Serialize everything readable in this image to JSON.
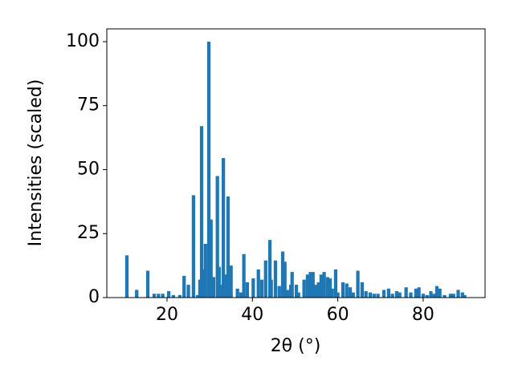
{
  "chart_data": {
    "type": "bar",
    "xlabel": "2θ (°)",
    "ylabel": "Intensities (scaled)",
    "color": "#1f77b4",
    "bar_width": 0.8,
    "x": [
      10.6,
      12.9,
      15.5,
      17,
      18,
      19,
      20.4,
      21.5,
      23,
      24,
      25,
      26.2,
      27.2,
      27.7,
      28.1,
      28.6,
      29,
      29.8,
      30.3,
      30.9,
      31.8,
      32.2,
      32.8,
      33.2,
      33.7,
      34.3,
      35,
      36.5,
      37.3,
      38,
      38.8,
      40.2,
      41.4,
      42.2,
      43.1,
      44.1,
      44.4,
      45.4,
      46.3,
      47.1,
      47.6,
      48.2,
      49,
      49.3,
      50.3,
      50.8,
      52.1,
      52.9,
      53.6,
      54.2,
      54.8,
      55.5,
      56.1,
      56.8,
      57.6,
      58.2,
      58.7,
      59.5,
      60,
      61.2,
      62.1,
      62.9,
      63.6,
      64.7,
      65.7,
      66.6,
      67.6,
      68.5,
      69.4,
      70.8,
      71.9,
      72.8,
      73.8,
      74.5,
      76,
      77.1,
      78.3,
      79,
      80,
      80.9,
      81.8,
      82.6,
      83.2,
      83.9,
      85,
      86.4,
      87.1,
      88.2,
      89.2,
      89.7
    ],
    "values": [
      16.5,
      3,
      10.5,
      1.5,
      1.5,
      1.5,
      2.5,
      1,
      1,
      8.5,
      5,
      40,
      1,
      7,
      67,
      11,
      21,
      100,
      30.5,
      8,
      47.5,
      12,
      5,
      54.5,
      9,
      39.5,
      12.5,
      3.5,
      2,
      17,
      6,
      7.5,
      11,
      7,
      14.5,
      22.5,
      7,
      14.5,
      4.5,
      18,
      14,
      3,
      5,
      10,
      5,
      2,
      7,
      9,
      10,
      10,
      5,
      6,
      9,
      10,
      8,
      7.5,
      3.5,
      11,
      2,
      6,
      5.5,
      4,
      2,
      10.5,
      6,
      2.5,
      2,
      1.5,
      1.5,
      3,
      3.5,
      1.5,
      2.5,
      2,
      4,
      2,
      3.5,
      4,
      1.5,
      1,
      2.5,
      1.5,
      4.5,
      3.5,
      1,
      1.5,
      1.5,
      3,
      2,
      1
    ],
    "xlim": [
      5.9,
      94.5
    ],
    "xticks": [
      20,
      40,
      60,
      80
    ],
    "ylim": [
      0,
      105
    ],
    "yticks": [
      0,
      25,
      50,
      75,
      100
    ],
    "grid": false
  }
}
